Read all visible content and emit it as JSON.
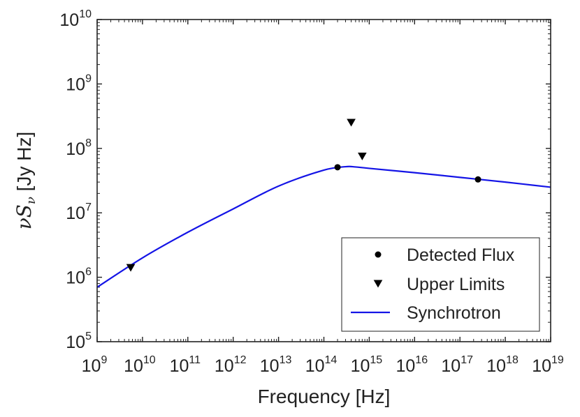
{
  "chart_data": {
    "type": "scatter",
    "x_scale": "log",
    "y_scale": "log",
    "xlim": [
      1000000000.0,
      1e+19
    ],
    "ylim": [
      100000.0,
      10000000000.0
    ],
    "xlabel": "Frequency [Hz]",
    "ylabel_math": "νS",
    "ylabel_sub": "ν",
    "ylabel_unit": "[Jy Hz]",
    "x_ticks": [
      {
        "base": "10",
        "exp": "9",
        "value": 1000000000.0
      },
      {
        "base": "10",
        "exp": "10",
        "value": 10000000000.0
      },
      {
        "base": "10",
        "exp": "11",
        "value": 100000000000.0
      },
      {
        "base": "10",
        "exp": "12",
        "value": 1000000000000.0
      },
      {
        "base": "10",
        "exp": "13",
        "value": 10000000000000.0
      },
      {
        "base": "10",
        "exp": "14",
        "value": 100000000000000.0
      },
      {
        "base": "10",
        "exp": "15",
        "value": 1000000000000000.0
      },
      {
        "base": "10",
        "exp": "16",
        "value": 1e+16
      },
      {
        "base": "10",
        "exp": "17",
        "value": 1e+17
      },
      {
        "base": "10",
        "exp": "18",
        "value": 1e+18
      },
      {
        "base": "10",
        "exp": "19",
        "value": 1e+19
      }
    ],
    "y_ticks": [
      {
        "base": "10",
        "exp": "5",
        "value": 100000.0
      },
      {
        "base": "10",
        "exp": "6",
        "value": 1000000.0
      },
      {
        "base": "10",
        "exp": "7",
        "value": 10000000.0
      },
      {
        "base": "10",
        "exp": "8",
        "value": 100000000.0
      },
      {
        "base": "10",
        "exp": "9",
        "value": 1000000000.0
      },
      {
        "base": "10",
        "exp": "10",
        "value": 10000000000.0
      }
    ],
    "series": [
      {
        "name": "Detected Flux",
        "kind": "scatter",
        "marker": "circle",
        "color": "#000000",
        "points": [
          {
            "x": 200000000000000.0,
            "y": 51000000.0
          },
          {
            "x": 2.5e+17,
            "y": 33000000.0
          }
        ]
      },
      {
        "name": "Upper Limits",
        "kind": "scatter",
        "marker": "triangle-down",
        "color": "#000000",
        "points": [
          {
            "x": 5500000000.0,
            "y": 1400000.0
          },
          {
            "x": 400000000000000.0,
            "y": 250000000.0
          },
          {
            "x": 700000000000000.0,
            "y": 75000000.0
          }
        ]
      },
      {
        "name": "Synchrotron",
        "kind": "line",
        "color": "#1414e6",
        "points": [
          {
            "x": 1000000000.0,
            "y": 700000.0
          },
          {
            "x": 10000000000.0,
            "y": 2000000.0
          },
          {
            "x": 100000000000.0,
            "y": 5000000.0
          },
          {
            "x": 1000000000000.0,
            "y": 11500000.0
          },
          {
            "x": 10000000000000.0,
            "y": 26000000.0
          },
          {
            "x": 100000000000000.0,
            "y": 46000000.0
          },
          {
            "x": 300000000000000.0,
            "y": 52000000.0
          },
          {
            "x": 500000000000000.0,
            "y": 51500000.0
          },
          {
            "x": 1000000000000000.0,
            "y": 49000000.0
          },
          {
            "x": 1e+16,
            "y": 42000000.0
          },
          {
            "x": 1e+17,
            "y": 35500000.0
          },
          {
            "x": 1e+18,
            "y": 30000000.0
          },
          {
            "x": 1e+19,
            "y": 25000000.0
          }
        ]
      }
    ],
    "legend": {
      "position": "bottom-right",
      "entries": [
        "Detected Flux",
        "Upper Limits",
        "Synchrotron"
      ]
    }
  }
}
